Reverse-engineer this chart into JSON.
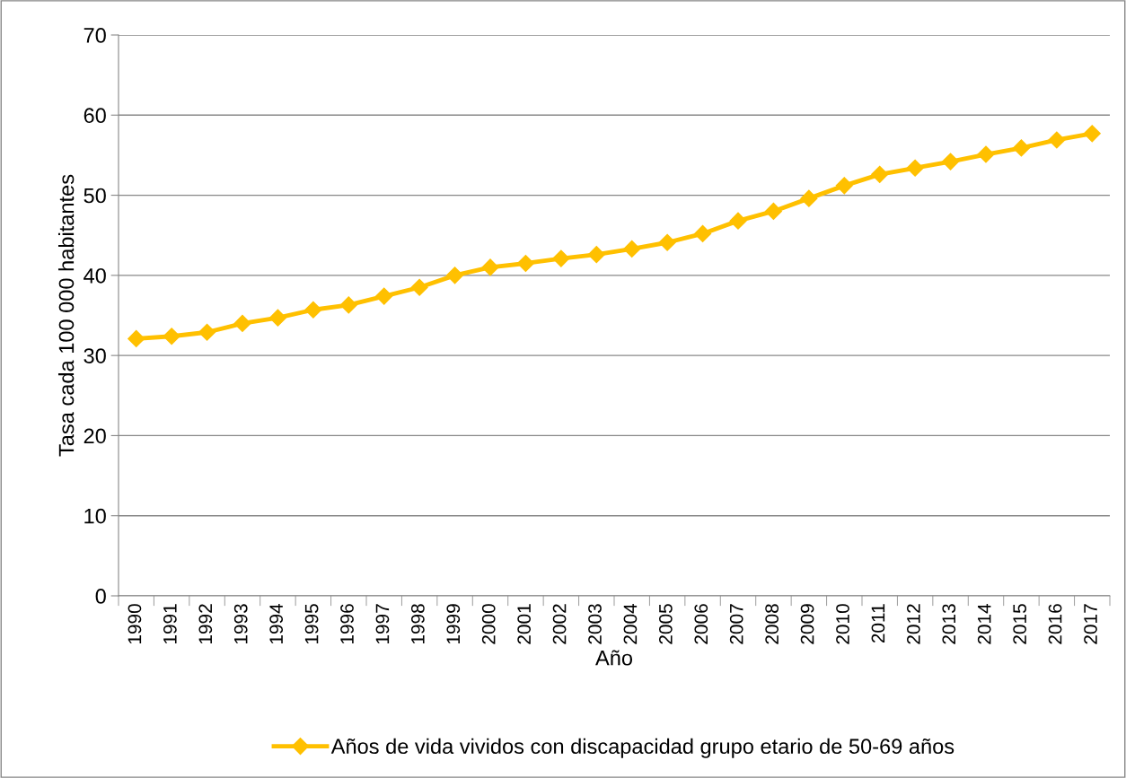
{
  "chart_data": {
    "type": "line",
    "xlabel": "Año",
    "ylabel": "Tasa cada 100 000 habitantes",
    "categories": [
      "1990",
      "1991",
      "1992",
      "1993",
      "1994",
      "1995",
      "1996",
      "1997",
      "1998",
      "1999",
      "2000",
      "2001",
      "2002",
      "2003",
      "2004",
      "2005",
      "2006",
      "2007",
      "2008",
      "2009",
      "2010",
      "2011",
      "2012",
      "2013",
      "2014",
      "2015",
      "2016",
      "2017"
    ],
    "series": [
      {
        "name": "Años de vida vividos con discapacidad grupo etario de 50-69 años",
        "color": "#ffc000",
        "values": [
          32.1,
          32.4,
          32.9,
          34.0,
          34.7,
          35.7,
          36.3,
          37.4,
          38.5,
          40.0,
          41.0,
          41.5,
          42.1,
          42.6,
          43.3,
          44.1,
          45.2,
          46.8,
          48.0,
          49.6,
          51.2,
          52.6,
          53.4,
          54.2,
          55.1,
          55.9,
          56.9,
          57.7
        ]
      }
    ],
    "ylim": [
      0,
      70
    ],
    "yticks": [
      0,
      10,
      20,
      30,
      40,
      50,
      60,
      70
    ],
    "grid": "y",
    "legend": "bottom",
    "marker": "diamond",
    "line_style": "solid"
  }
}
